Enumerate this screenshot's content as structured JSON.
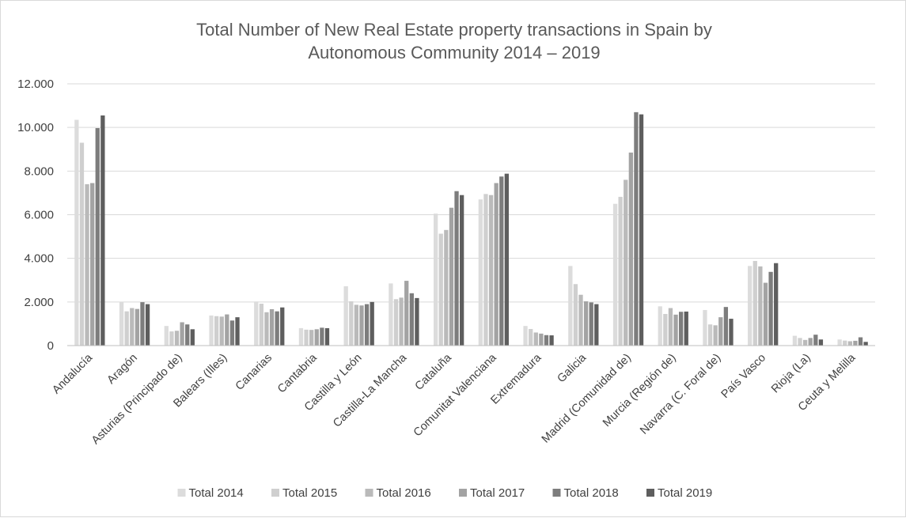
{
  "chart_data": {
    "type": "bar",
    "title_lines": [
      "Total Number of New Real Estate property transactions in Spain by",
      "Autonomous Community  2014 – 2019"
    ],
    "ylim": [
      0,
      12000
    ],
    "yticks": [
      0,
      2000,
      4000,
      6000,
      8000,
      10000,
      12000
    ],
    "ytick_labels": [
      "0",
      "2.000",
      "4.000",
      "6.000",
      "8.000",
      "10.000",
      "12.000"
    ],
    "grid": true,
    "legend_position": "bottom",
    "categories": [
      "Andalucía",
      "Aragón",
      "Asturias (Principado de)",
      "Balears (Illes)",
      "Canarias",
      "Cantabria",
      "Castilla y León",
      "Castilla-La Mancha",
      "Cataluña",
      "Comunitat Valenciana",
      "Extremadura",
      "Galicia",
      "Madrid (Comunidad de)",
      "Murcia (Región de)",
      "Navarra (C. Foral de)",
      "País Vasco",
      "Rioja (La)",
      "Ceuta y Melilla"
    ],
    "series": [
      {
        "name": "Total 2014",
        "color": "#dcdcdc",
        "values": [
          10350,
          2000,
          900,
          1380,
          2020,
          800,
          2720,
          2850,
          6050,
          6700,
          900,
          3650,
          6500,
          1800,
          1630,
          3650,
          450,
          280
        ]
      },
      {
        "name": "Total 2015",
        "color": "#cfcfcf",
        "values": [
          9300,
          1570,
          650,
          1350,
          1920,
          730,
          2030,
          2130,
          5130,
          6950,
          760,
          2820,
          6820,
          1450,
          970,
          3880,
          350,
          230
        ]
      },
      {
        "name": "Total 2016",
        "color": "#bababa",
        "values": [
          7400,
          1720,
          680,
          1330,
          1530,
          720,
          1870,
          2200,
          5300,
          6900,
          600,
          2330,
          7600,
          1720,
          930,
          3630,
          260,
          200
        ]
      },
      {
        "name": "Total 2017",
        "color": "#a3a3a3",
        "values": [
          7450,
          1680,
          1070,
          1430,
          1670,
          750,
          1840,
          2970,
          6320,
          7450,
          550,
          2030,
          8850,
          1420,
          1300,
          2880,
          350,
          220
        ]
      },
      {
        "name": "Total 2018",
        "color": "#7d7d7d",
        "values": [
          9970,
          1990,
          970,
          1150,
          1570,
          820,
          1900,
          2400,
          7080,
          7750,
          480,
          1980,
          10700,
          1550,
          1770,
          3380,
          500,
          380
        ]
      },
      {
        "name": "Total 2019",
        "color": "#5e5e5e",
        "values": [
          10550,
          1900,
          750,
          1300,
          1750,
          800,
          2000,
          2180,
          6900,
          7880,
          470,
          1900,
          10600,
          1560,
          1230,
          3780,
          280,
          170
        ]
      }
    ]
  }
}
